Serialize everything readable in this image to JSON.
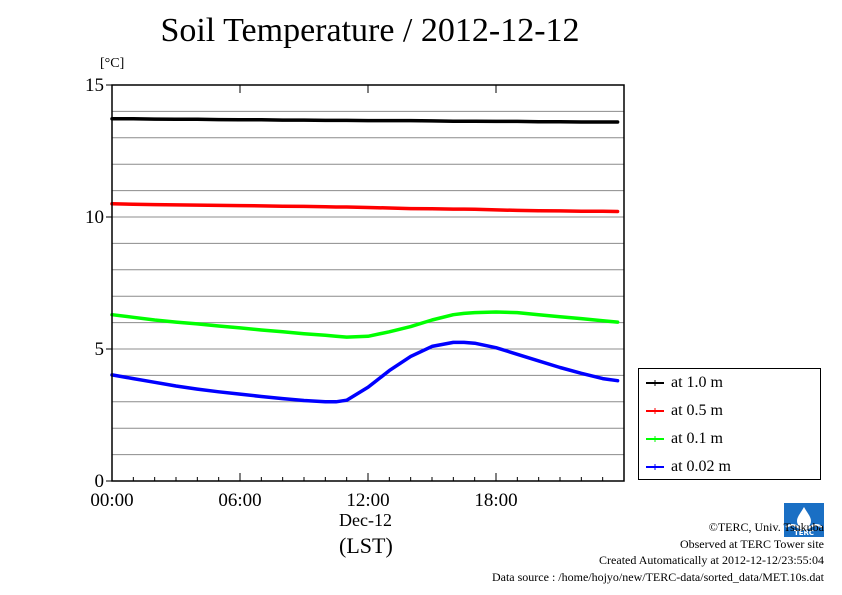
{
  "title": "Soil Temperature / 2012-12-12",
  "unit_label": "[°C]",
  "x_axis": {
    "date_label": "Dec-12",
    "timezone_label": "(LST)"
  },
  "legend": {
    "items": [
      {
        "label": "at 1.0 m",
        "color": "#000000"
      },
      {
        "label": "at 0.5 m",
        "color": "#ff0000"
      },
      {
        "label": "at 0.1 m",
        "color": "#00ff00"
      },
      {
        "label": "at 0.02 m",
        "color": "#0000ff"
      }
    ]
  },
  "credits": {
    "copyright": "©TERC, Univ. Tsukuba",
    "observed": "Observed at TERC Tower site",
    "created": "Created Automatically at 2012-12-12/23:55:04",
    "source": "Data source : /home/hojyo/new/TERC-data/sorted_data/MET.10s.dat"
  },
  "logo": {
    "text": "TERC",
    "color": "#1a6fc4"
  },
  "chart_data": {
    "type": "line",
    "title": "Soil Temperature / 2012-12-12",
    "ylabel": "[°C]",
    "xlabel": "(LST)",
    "xlim": [
      0,
      24
    ],
    "ylim": [
      0,
      15
    ],
    "x_ticks": [
      {
        "value": 0,
        "label": "00:00"
      },
      {
        "value": 6,
        "label": "06:00"
      },
      {
        "value": 12,
        "label": "12:00"
      },
      {
        "value": 18,
        "label": "18:00"
      }
    ],
    "y_ticks": [
      {
        "value": 0,
        "label": "0"
      },
      {
        "value": 5,
        "label": "5"
      },
      {
        "value": 10,
        "label": "10"
      },
      {
        "value": 15,
        "label": "15"
      }
    ],
    "grid": true,
    "legend_position": "right",
    "x": [
      0,
      1,
      2,
      3,
      4,
      5,
      6,
      7,
      8,
      9,
      10,
      10.5,
      11,
      12,
      13,
      14,
      15,
      16,
      16.5,
      17,
      18,
      19,
      20,
      21,
      22,
      23,
      23.7
    ],
    "series": [
      {
        "name": "at 1.0 m",
        "color": "#000000",
        "values": [
          13.72,
          13.72,
          13.71,
          13.7,
          13.7,
          13.69,
          13.68,
          13.68,
          13.67,
          13.67,
          13.66,
          13.66,
          13.66,
          13.65,
          13.65,
          13.65,
          13.64,
          13.63,
          13.63,
          13.63,
          13.62,
          13.62,
          13.61,
          13.61,
          13.6,
          13.6,
          13.6
        ]
      },
      {
        "name": "at 0.5 m",
        "color": "#ff0000",
        "values": [
          10.5,
          10.48,
          10.47,
          10.46,
          10.45,
          10.44,
          10.43,
          10.42,
          10.41,
          10.4,
          10.39,
          10.38,
          10.38,
          10.36,
          10.34,
          10.32,
          10.31,
          10.3,
          10.3,
          10.29,
          10.27,
          10.25,
          10.24,
          10.23,
          10.22,
          10.22,
          10.21
        ]
      },
      {
        "name": "at 0.1 m",
        "color": "#00ff00",
        "values": [
          6.3,
          6.2,
          6.1,
          6.02,
          5.95,
          5.87,
          5.8,
          5.72,
          5.65,
          5.58,
          5.52,
          5.48,
          5.45,
          5.48,
          5.65,
          5.85,
          6.1,
          6.3,
          6.35,
          6.38,
          6.4,
          6.38,
          6.3,
          6.22,
          6.15,
          6.07,
          6.02
        ]
      },
      {
        "name": "at 0.02 m",
        "color": "#0000ff",
        "values": [
          4.02,
          3.88,
          3.74,
          3.6,
          3.48,
          3.38,
          3.29,
          3.2,
          3.12,
          3.05,
          3.0,
          3.0,
          3.06,
          3.55,
          4.18,
          4.72,
          5.1,
          5.25,
          5.25,
          5.22,
          5.05,
          4.8,
          4.55,
          4.3,
          4.08,
          3.88,
          3.8
        ]
      }
    ]
  }
}
